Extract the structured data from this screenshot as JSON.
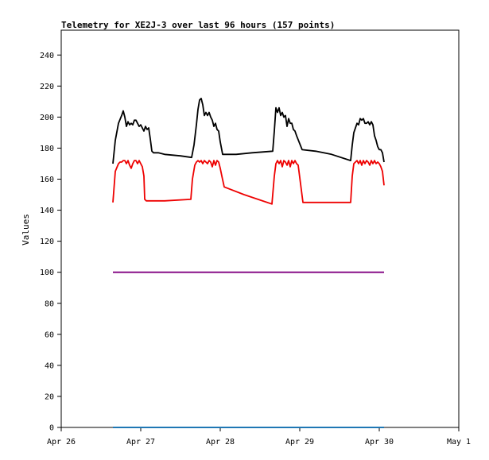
{
  "chart_data": {
    "type": "line",
    "title": "Telemetry for XE2J-3 over last 96 hours (157 points)",
    "xlabel": "",
    "ylabel": "Values",
    "x_range": [
      "Apr 26",
      "May 1"
    ],
    "x_ticks": [
      "Apr 26",
      "Apr 27",
      "Apr 28",
      "Apr 29",
      "Apr 30",
      "May 1"
    ],
    "ylim": [
      0,
      256
    ],
    "y_ticks": [
      0,
      20,
      40,
      60,
      80,
      100,
      120,
      140,
      160,
      180,
      200,
      220,
      240
    ],
    "grid": false,
    "legend": "none",
    "x_unit_note_days_from_first_tick": true,
    "series": [
      {
        "color": "#000000",
        "x": [
          0.65,
          0.68,
          0.72,
          0.76,
          0.78,
          0.8,
          0.82,
          0.84,
          0.86,
          0.88,
          0.9,
          0.92,
          0.94,
          0.96,
          0.98,
          1.0,
          1.04,
          1.06,
          1.08,
          1.1,
          1.12,
          1.14,
          1.16,
          1.18,
          1.22,
          1.3,
          1.5,
          1.64,
          1.67,
          1.7,
          1.72,
          1.74,
          1.76,
          1.78,
          1.8,
          1.82,
          1.84,
          1.86,
          1.88,
          1.9,
          1.92,
          1.94,
          1.96,
          1.98,
          2.0,
          2.03,
          2.08,
          2.2,
          2.4,
          2.66,
          2.68,
          2.7,
          2.72,
          2.74,
          2.76,
          2.78,
          2.8,
          2.82,
          2.84,
          2.86,
          2.88,
          2.9,
          2.92,
          2.94,
          2.96,
          3.03,
          3.2,
          3.4,
          3.64,
          3.66,
          3.68,
          3.72,
          3.74,
          3.76,
          3.78,
          3.8,
          3.82,
          3.84,
          3.86,
          3.88,
          3.9,
          3.92,
          3.94,
          3.96,
          3.98,
          4.0,
          4.02,
          4.04,
          4.06
        ],
        "values": [
          170,
          185,
          196,
          201,
          204,
          200,
          194,
          197,
          195,
          196,
          195,
          198,
          198,
          196,
          194,
          195,
          191,
          194,
          192,
          193,
          186,
          178,
          177,
          177,
          177,
          176,
          175,
          174,
          182,
          195,
          205,
          211,
          212,
          208,
          201,
          203,
          201,
          203,
          200,
          198,
          194,
          196,
          192,
          191,
          184,
          176,
          176,
          176,
          177,
          178,
          191,
          206,
          203,
          206,
          201,
          203,
          200,
          201,
          194,
          199,
          196,
          196,
          192,
          191,
          188,
          179,
          178,
          176,
          172,
          182,
          190,
          196,
          195,
          199,
          198,
          199,
          196,
          196,
          197,
          195,
          197,
          195,
          188,
          185,
          181,
          179,
          179,
          177,
          171
        ]
      },
      {
        "color": "#ee0000",
        "x": [
          0.65,
          0.68,
          0.72,
          0.74,
          0.76,
          0.78,
          0.8,
          0.82,
          0.84,
          0.86,
          0.88,
          0.9,
          0.92,
          0.94,
          0.96,
          0.98,
          1.0,
          1.02,
          1.04,
          1.05,
          1.07,
          1.3,
          1.63,
          1.65,
          1.68,
          1.7,
          1.72,
          1.74,
          1.76,
          1.78,
          1.8,
          1.82,
          1.84,
          1.86,
          1.88,
          1.9,
          1.92,
          1.94,
          1.96,
          1.98,
          2.0,
          2.02,
          2.05,
          2.3,
          2.65,
          2.68,
          2.7,
          2.72,
          2.74,
          2.76,
          2.78,
          2.8,
          2.82,
          2.84,
          2.86,
          2.88,
          2.9,
          2.92,
          2.94,
          2.96,
          2.98,
          3.04,
          3.3,
          3.64,
          3.66,
          3.68,
          3.7,
          3.72,
          3.74,
          3.76,
          3.78,
          3.8,
          3.82,
          3.84,
          3.86,
          3.88,
          3.9,
          3.92,
          3.94,
          3.96,
          3.98,
          4.0,
          4.02,
          4.04,
          4.06
        ],
        "values": [
          145,
          165,
          170,
          171,
          171,
          172,
          172,
          170,
          172,
          169,
          167,
          170,
          172,
          172,
          170,
          172,
          170,
          168,
          162,
          147,
          146,
          146,
          147,
          160,
          169,
          171,
          172,
          171,
          172,
          170,
          172,
          171,
          170,
          172,
          171,
          168,
          172,
          169,
          172,
          171,
          167,
          162,
          155,
          150,
          144,
          162,
          170,
          172,
          170,
          172,
          168,
          172,
          171,
          169,
          172,
          168,
          172,
          170,
          172,
          170,
          169,
          145,
          145,
          145,
          162,
          170,
          171,
          172,
          170,
          172,
          169,
          172,
          170,
          172,
          171,
          169,
          172,
          170,
          172,
          170,
          171,
          170,
          168,
          165,
          156
        ]
      },
      {
        "color": "#800080",
        "x": [
          0.65,
          4.06
        ],
        "values": [
          100,
          100
        ]
      },
      {
        "color": "#1f77b4",
        "x": [
          0.65,
          4.06
        ],
        "values": [
          0,
          0
        ]
      }
    ]
  }
}
